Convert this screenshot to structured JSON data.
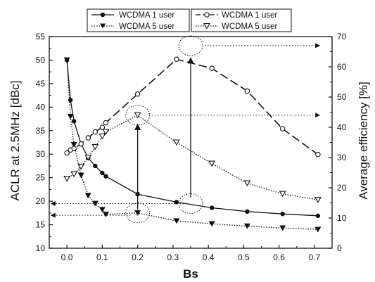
{
  "chart_data": {
    "type": "line",
    "xlabel": "Bs",
    "ylabel_left": "ACLR at 2.5MHz [dBc]",
    "ylabel_right": "Average efficiency [%]",
    "xlim": [
      -0.05,
      0.75
    ],
    "ylim_left": [
      10,
      55
    ],
    "ylim_right": [
      0,
      70
    ],
    "xticks": [
      0.0,
      0.1,
      0.2,
      0.3,
      0.4,
      0.5,
      0.6,
      0.7
    ],
    "xtick_labels": [
      "0.0",
      "0.1",
      "0.2",
      "0.3",
      "0.4",
      "0.5",
      "0.6",
      "0.7"
    ],
    "yticks_left": [
      10,
      15,
      20,
      25,
      30,
      35,
      40,
      45,
      50,
      55
    ],
    "yticks_right": [
      0,
      10,
      20,
      30,
      40,
      50,
      60,
      70
    ],
    "legend_left": [
      {
        "label": "WCDMA 1 user",
        "series": "aclr_1"
      },
      {
        "label": "WCDMA 5 user",
        "series": "aclr_5"
      }
    ],
    "legend_right": [
      {
        "label": "WCDMA 1 user",
        "series": "eff_1"
      },
      {
        "label": "WCDMA 5 user",
        "series": "eff_5"
      }
    ],
    "series": [
      {
        "id": "aclr_1",
        "axis": "left",
        "marker": "filled-circle",
        "line": "solid",
        "x": [
          0.0,
          0.01,
          0.02,
          0.04,
          0.06,
          0.08,
          0.1,
          0.11,
          0.2,
          0.31,
          0.41,
          0.51,
          0.61,
          0.71
        ],
        "values": [
          50.0,
          41.5,
          37.0,
          32.2,
          29.2,
          27.5,
          26.0,
          25.3,
          21.5,
          19.8,
          18.6,
          17.8,
          17.3,
          16.9
        ]
      },
      {
        "id": "aclr_5",
        "axis": "left",
        "marker": "filled-triangle-down",
        "line": "dotted",
        "x": [
          0.0,
          0.01,
          0.02,
          0.04,
          0.06,
          0.08,
          0.1,
          0.11,
          0.2,
          0.31,
          0.41,
          0.51,
          0.61,
          0.71
        ],
        "values": [
          50.0,
          38.0,
          32.0,
          25.5,
          21.2,
          19.5,
          18.2,
          17.2,
          17.5,
          15.8,
          15.2,
          14.7,
          14.3,
          14.0
        ]
      },
      {
        "id": "eff_1",
        "axis": "right",
        "marker": "open-circle",
        "line": "dashed",
        "x": [
          0.0,
          0.01,
          0.02,
          0.04,
          0.06,
          0.08,
          0.1,
          0.11,
          0.2,
          0.31,
          0.41,
          0.51,
          0.61,
          0.71
        ],
        "values": [
          31.5,
          32.5,
          33.0,
          34.5,
          36.5,
          38.5,
          40.0,
          41.5,
          51.0,
          62.5,
          59.5,
          52.0,
          39.5,
          31.0
        ]
      },
      {
        "id": "eff_5",
        "axis": "right",
        "marker": "open-triangle-down",
        "line": "dotted",
        "x": [
          0.0,
          0.02,
          0.04,
          0.06,
          0.08,
          0.1,
          0.11,
          0.2,
          0.31,
          0.41,
          0.51,
          0.61,
          0.71
        ],
        "values": [
          23.0,
          24.5,
          27.0,
          30.0,
          33.5,
          37.0,
          38.5,
          44.0,
          35.0,
          28.0,
          21.5,
          18.0,
          16.0
        ]
      }
    ],
    "annotations": {
      "circles": [
        {
          "x": 0.2,
          "y": 44.0,
          "axis": "right"
        },
        {
          "x": 0.35,
          "y": 67.0,
          "axis": "right"
        },
        {
          "x": 0.2,
          "y": 17.5,
          "axis": "left"
        },
        {
          "x": 0.35,
          "y": 19.5,
          "axis": "left"
        }
      ],
      "vertical_arrows": [
        {
          "x": 0.2,
          "from": {
            "y": 18.2,
            "axis": "left"
          },
          "to": {
            "y": 41.0,
            "axis": "right"
          }
        },
        {
          "x": 0.35,
          "from": {
            "y": 20.8,
            "axis": "left"
          },
          "to": {
            "y": 63.0,
            "axis": "right"
          }
        }
      ],
      "horizontal_arrows": [
        {
          "from_x": 0.24,
          "to_x": 0.715,
          "y": 44.0,
          "axis": "right"
        },
        {
          "from_x": 0.39,
          "to_x": 0.715,
          "y": 67.0,
          "axis": "right"
        },
        {
          "from_x": 0.18,
          "to_x": -0.045,
          "y": 17.0,
          "axis": "left"
        },
        {
          "from_x": 0.33,
          "to_x": -0.045,
          "y": 19.5,
          "axis": "left"
        }
      ]
    },
    "grid": false
  }
}
